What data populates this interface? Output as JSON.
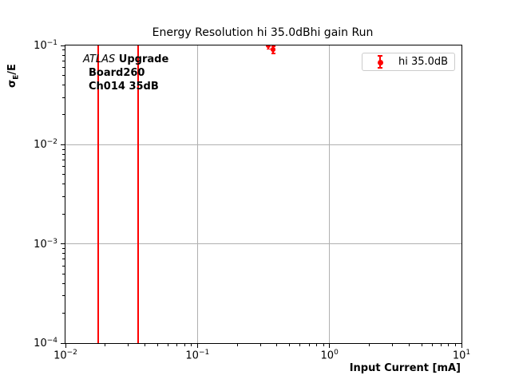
{
  "chart_data": {
    "type": "scatter",
    "title": "Energy Resolution hi 35.0dBhi gain Run",
    "xlabel": "Input Current [mA]",
    "ylabel": "σ_E/E",
    "ylabel_parts": {
      "sigma": "σ",
      "sub": "E",
      "rest": "/E"
    },
    "xscale": "log",
    "yscale": "log",
    "xlim": [
      0.01,
      10
    ],
    "ylim": [
      0.0001,
      0.1
    ],
    "x_tick_exponents": [
      -2,
      -1,
      0,
      1
    ],
    "y_tick_exponents": [
      -1,
      -2,
      -3,
      -4
    ],
    "grid": true,
    "grid_color": "#b0b0b0",
    "accent_color": "#ff0000",
    "legend_position": "upper right",
    "series": [
      {
        "name": "hi 35.0dB",
        "color": "#ff0000",
        "marker": "o",
        "points": [
          {
            "x": 0.344,
            "y": 0.1,
            "yerr": 0.008
          },
          {
            "x": 0.374,
            "y": 0.091,
            "yerr": 0.008
          }
        ]
      }
    ],
    "vlines": [
      {
        "x": 0.0178,
        "color": "#ff0000"
      },
      {
        "x": 0.0356,
        "color": "#ff0000"
      }
    ],
    "annotation": {
      "line1_italic": "ATLAS",
      "line1_bold": " Upgrade",
      "line2": "Board260",
      "line3": "Ch014 35dB"
    },
    "legend": {
      "label": "hi 35.0dB",
      "marker_color": "#ff0000"
    }
  }
}
